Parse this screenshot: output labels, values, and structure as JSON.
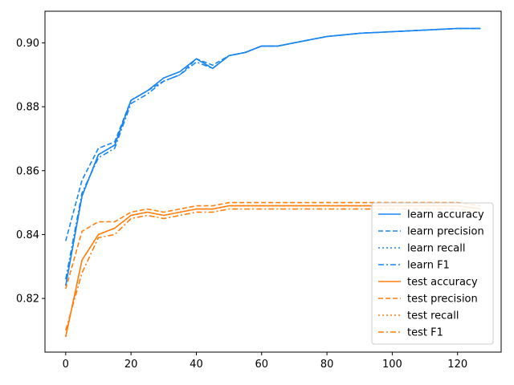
{
  "chart_data": {
    "type": "line",
    "title": "",
    "xlabel": "",
    "ylabel": "",
    "xlim": [
      -6.35,
      133.35
    ],
    "ylim": [
      0.8032,
      0.9099
    ],
    "xticks": [
      0,
      20,
      40,
      60,
      80,
      100,
      120
    ],
    "yticks": [
      0.82,
      0.84,
      0.86,
      0.88,
      0.9
    ],
    "ytick_labels": [
      "0.82",
      "0.84",
      "0.86",
      "0.88",
      "0.90"
    ],
    "grid": false,
    "legend_position": "lower-right",
    "colors": {
      "learn": "#1f77b4",
      "learn_bright": "#1a86f0",
      "test": "#ff7f0e"
    },
    "series": [
      {
        "name": "learn accuracy",
        "color": "#1a86f0",
        "linestyle": "solid",
        "x": [
          0,
          5,
          10,
          15,
          20,
          25,
          30,
          35,
          40,
          45,
          50,
          55,
          60,
          65,
          70,
          75,
          80,
          90,
          100,
          110,
          120,
          127
        ],
        "y": [
          0.824,
          0.852,
          0.865,
          0.868,
          0.882,
          0.885,
          0.889,
          0.891,
          0.895,
          0.892,
          0.896,
          0.897,
          0.899,
          0.899,
          0.9,
          0.901,
          0.902,
          0.903,
          0.9035,
          0.904,
          0.9045,
          0.9045
        ]
      },
      {
        "name": "learn precision",
        "color": "#1a86f0",
        "linestyle": "dashed",
        "x": [
          0,
          5,
          10,
          15,
          20,
          25,
          30,
          35,
          40,
          45,
          50,
          55,
          60,
          65,
          70,
          75,
          80,
          90,
          100,
          110,
          120,
          127
        ],
        "y": [
          0.838,
          0.857,
          0.867,
          0.869,
          0.882,
          0.885,
          0.888,
          0.89,
          0.895,
          0.893,
          0.896,
          0.897,
          0.899,
          0.899,
          0.9,
          0.901,
          0.902,
          0.903,
          0.9035,
          0.904,
          0.9045,
          0.9045
        ]
      },
      {
        "name": "learn recall",
        "color": "#1a86f0",
        "linestyle": "dotted",
        "x": [
          0,
          5,
          10,
          15,
          20,
          25,
          30,
          35,
          40,
          45,
          50,
          55,
          60,
          65,
          70,
          75,
          80,
          90,
          100,
          110,
          120,
          127
        ],
        "y": [
          0.824,
          0.852,
          0.865,
          0.868,
          0.882,
          0.885,
          0.889,
          0.891,
          0.895,
          0.892,
          0.896,
          0.897,
          0.899,
          0.899,
          0.9,
          0.901,
          0.902,
          0.903,
          0.9035,
          0.904,
          0.9045,
          0.9045
        ]
      },
      {
        "name": "learn F1",
        "color": "#1a86f0",
        "linestyle": "dashdot",
        "x": [
          0,
          5,
          10,
          15,
          20,
          25,
          30,
          35,
          40,
          45,
          50,
          55,
          60,
          65,
          70,
          75,
          80,
          90,
          100,
          110,
          120,
          127
        ],
        "y": [
          0.826,
          0.853,
          0.864,
          0.867,
          0.881,
          0.884,
          0.888,
          0.89,
          0.894,
          0.892,
          0.896,
          0.897,
          0.899,
          0.899,
          0.9,
          0.901,
          0.902,
          0.903,
          0.9035,
          0.904,
          0.9045,
          0.9045
        ]
      },
      {
        "name": "test accuracy",
        "color": "#ff7f0e",
        "linestyle": "solid",
        "x": [
          0,
          5,
          10,
          15,
          20,
          25,
          30,
          35,
          40,
          45,
          50,
          55,
          60,
          65,
          70,
          75,
          80,
          90,
          100,
          110,
          120,
          127
        ],
        "y": [
          0.808,
          0.832,
          0.84,
          0.842,
          0.846,
          0.847,
          0.846,
          0.847,
          0.848,
          0.848,
          0.849,
          0.849,
          0.849,
          0.849,
          0.849,
          0.849,
          0.849,
          0.849,
          0.849,
          0.849,
          0.849,
          0.848
        ]
      },
      {
        "name": "test precision",
        "color": "#ff7f0e",
        "linestyle": "dashed",
        "x": [
          0,
          5,
          10,
          15,
          20,
          25,
          30,
          35,
          40,
          45,
          50,
          55,
          60,
          65,
          70,
          75,
          80,
          90,
          100,
          110,
          120,
          127
        ],
        "y": [
          0.823,
          0.841,
          0.844,
          0.844,
          0.847,
          0.848,
          0.847,
          0.848,
          0.849,
          0.849,
          0.85,
          0.85,
          0.85,
          0.85,
          0.85,
          0.85,
          0.85,
          0.85,
          0.85,
          0.85,
          0.85,
          0.849
        ]
      },
      {
        "name": "test recall",
        "color": "#ff7f0e",
        "linestyle": "dotted",
        "x": [
          0,
          5,
          10,
          15,
          20,
          25,
          30,
          35,
          40,
          45,
          50,
          55,
          60,
          65,
          70,
          75,
          80,
          90,
          100,
          110,
          120,
          127
        ],
        "y": [
          0.808,
          0.832,
          0.84,
          0.842,
          0.846,
          0.847,
          0.846,
          0.847,
          0.848,
          0.848,
          0.849,
          0.849,
          0.849,
          0.849,
          0.849,
          0.849,
          0.849,
          0.849,
          0.849,
          0.849,
          0.849,
          0.848
        ]
      },
      {
        "name": "test F1",
        "color": "#ff7f0e",
        "linestyle": "dashdot",
        "x": [
          0,
          5,
          10,
          15,
          20,
          25,
          30,
          35,
          40,
          45,
          50,
          55,
          60,
          65,
          70,
          75,
          80,
          90,
          100,
          110,
          120,
          127
        ],
        "y": [
          0.81,
          0.828,
          0.839,
          0.84,
          0.845,
          0.846,
          0.845,
          0.846,
          0.847,
          0.847,
          0.848,
          0.848,
          0.848,
          0.848,
          0.848,
          0.848,
          0.848,
          0.848,
          0.848,
          0.848,
          0.848,
          0.847
        ]
      }
    ]
  }
}
